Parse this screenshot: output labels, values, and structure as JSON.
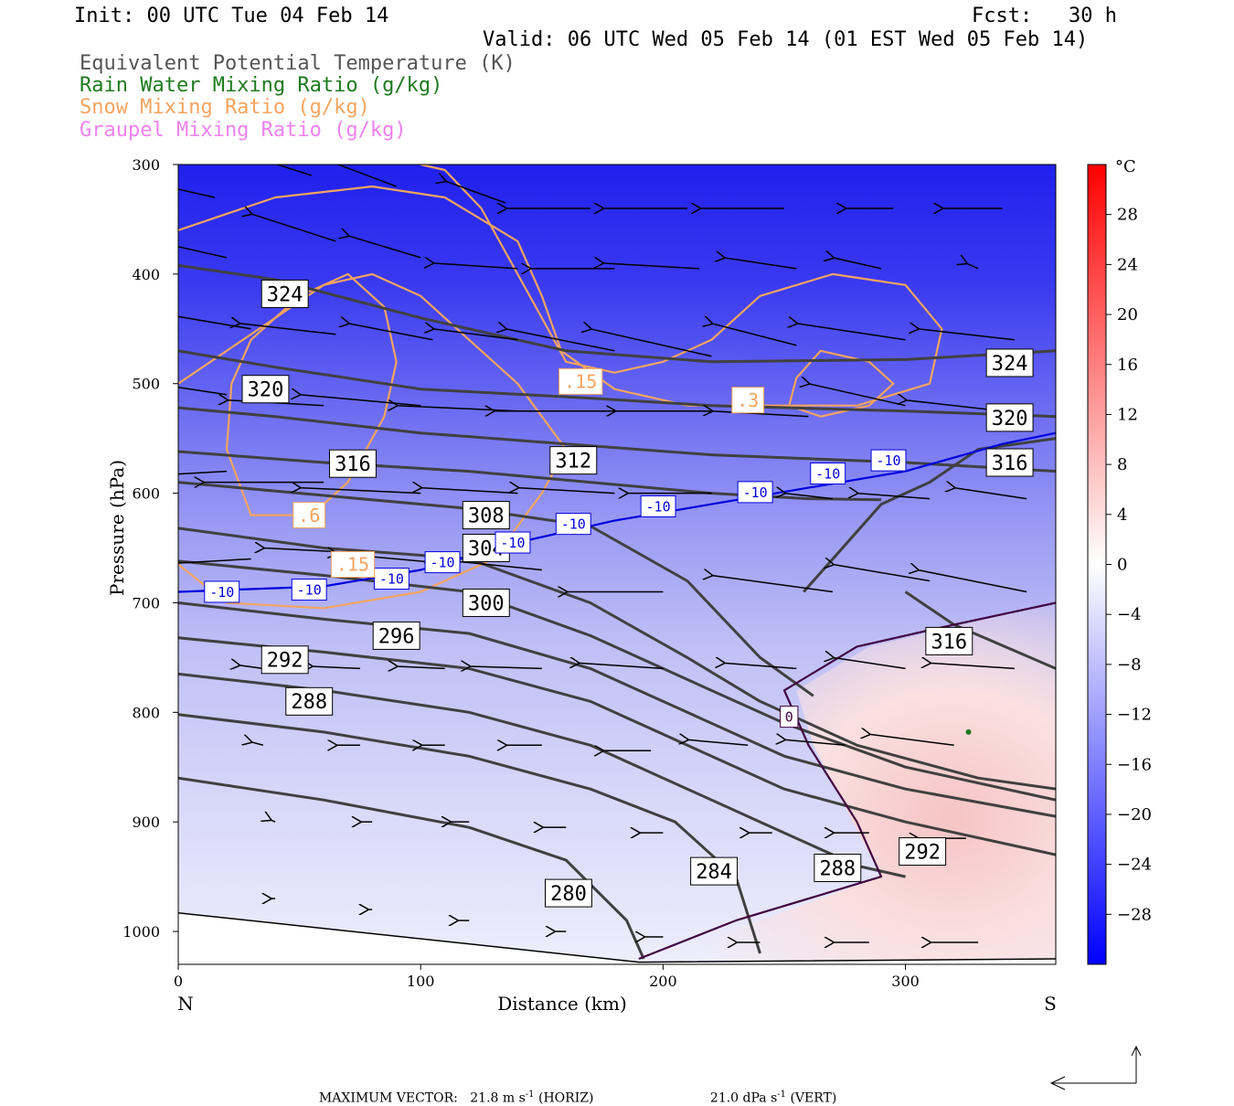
{
  "header": {
    "init": "Init: 00 UTC Tue 04 Feb 14",
    "fcst": "Fcst:   30 h",
    "valid": "Valid: 06 UTC Wed 05 Feb 14 (01 EST Wed 05 Feb 14)"
  },
  "fields": [
    {
      "label": "Equivalent Potential Temperature (K)",
      "color": "#555555"
    },
    {
      "label": "Rain Water Mixing Ratio (g/kg)",
      "color": "#1f7a1f"
    },
    {
      "label": "Snow Mixing Ratio (g/kg)",
      "color": "#f4a460"
    },
    {
      "label": "Graupel Mixing Ratio (g/kg)",
      "color": "#ee82ee"
    }
  ],
  "chart_data": {
    "type": "cross-section",
    "xlabel": "Distance (km)",
    "ylabel": "Pressure (hPa)",
    "x_ticks": [
      "0",
      "100",
      "200",
      "300"
    ],
    "x_tick_values": [
      0,
      100,
      200,
      300
    ],
    "xlim": [
      0,
      362
    ],
    "y_ticks": [
      "300",
      "400",
      "500",
      "600",
      "700",
      "800",
      "900",
      "1000"
    ],
    "y_tick_values": [
      300,
      400,
      500,
      600,
      700,
      800,
      900,
      1000
    ],
    "ylim": [
      300,
      1030
    ],
    "y_scale": "linear-inverted",
    "left_end": "N",
    "right_end": "S",
    "colorbar": {
      "unit": "°C",
      "tick_labels": [
        "28",
        "24",
        "20",
        "16",
        "12",
        "8",
        "4",
        "0",
        "-4",
        "-8",
        "-12",
        "-16",
        "-20",
        "-24",
        "-28"
      ],
      "range": [
        -32,
        32
      ],
      "low_color": "#0000ff",
      "mid_color": "#ffffff",
      "high_color": "#ff0000"
    },
    "theta_e_contours": [
      {
        "label": "324",
        "points": [
          [
            0,
            392
          ],
          [
            40,
            405
          ],
          [
            100,
            440
          ],
          [
            160,
            470
          ],
          [
            220,
            480
          ],
          [
            300,
            478
          ],
          [
            362,
            470
          ]
        ]
      },
      {
        "label": "320",
        "points": [
          [
            0,
            470
          ],
          [
            40,
            485
          ],
          [
            100,
            505
          ],
          [
            160,
            512
          ],
          [
            220,
            520
          ],
          [
            300,
            525
          ],
          [
            362,
            530
          ]
        ]
      },
      {
        "label": "316",
        "points": [
          [
            0,
            522
          ],
          [
            40,
            530
          ],
          [
            100,
            545
          ],
          [
            160,
            555
          ],
          [
            220,
            565
          ],
          [
            300,
            572
          ],
          [
            362,
            580
          ]
        ]
      },
      {
        "label": "312",
        "points": [
          [
            0,
            562
          ],
          [
            60,
            572
          ],
          [
            120,
            580
          ],
          [
            170,
            590
          ],
          [
            220,
            600
          ],
          [
            260,
            605
          ],
          [
            290,
            606
          ]
        ]
      },
      {
        "label": "308",
        "points": [
          [
            0,
            590
          ],
          [
            60,
            602
          ],
          [
            120,
            614
          ],
          [
            170,
            630
          ],
          [
            210,
            680
          ],
          [
            240,
            750
          ],
          [
            262,
            785
          ]
        ]
      },
      {
        "label": "304",
        "points": [
          [
            0,
            632
          ],
          [
            60,
            650
          ],
          [
            120,
            660
          ],
          [
            170,
            700
          ],
          [
            210,
            750
          ],
          [
            240,
            790
          ],
          [
            280,
            830
          ],
          [
            330,
            860
          ],
          [
            362,
            870
          ]
        ]
      },
      {
        "label": "300",
        "points": [
          [
            0,
            662
          ],
          [
            60,
            675
          ],
          [
            120,
            690
          ],
          [
            170,
            730
          ],
          [
            210,
            770
          ],
          [
            250,
            810
          ],
          [
            300,
            850
          ],
          [
            362,
            880
          ]
        ]
      },
      {
        "label": "296",
        "points": [
          [
            0,
            700
          ],
          [
            60,
            715
          ],
          [
            120,
            728
          ],
          [
            170,
            760
          ],
          [
            210,
            800
          ],
          [
            250,
            840
          ],
          [
            300,
            870
          ],
          [
            362,
            895
          ]
        ]
      },
      {
        "label": "292",
        "points": [
          [
            0,
            732
          ],
          [
            60,
            745
          ],
          [
            120,
            760
          ],
          [
            170,
            790
          ],
          [
            210,
            830
          ],
          [
            250,
            870
          ],
          [
            300,
            900
          ],
          [
            362,
            930
          ]
        ]
      },
      {
        "label": "288",
        "points": [
          [
            0,
            765
          ],
          [
            60,
            780
          ],
          [
            120,
            800
          ],
          [
            170,
            830
          ],
          [
            200,
            860
          ],
          [
            240,
            900
          ],
          [
            280,
            940
          ],
          [
            300,
            950
          ]
        ]
      },
      {
        "label": "284",
        "points": [
          [
            0,
            802
          ],
          [
            60,
            818
          ],
          [
            120,
            840
          ],
          [
            170,
            870
          ],
          [
            205,
            900
          ],
          [
            230,
            950
          ],
          [
            240,
            1020
          ]
        ]
      },
      {
        "label": "280",
        "points": [
          [
            0,
            860
          ],
          [
            60,
            880
          ],
          [
            120,
            905
          ],
          [
            160,
            935
          ],
          [
            185,
            990
          ],
          [
            192,
            1025
          ]
        ]
      }
    ],
    "theta_e_right_branch": [
      [
        258,
        690
      ],
      [
        290,
        610
      ],
      [
        300,
        600
      ],
      [
        310,
        590
      ],
      [
        330,
        560
      ],
      [
        362,
        550
      ]
    ],
    "theta_e_right_lower": [
      [
        300,
        690
      ],
      [
        320,
        720
      ],
      [
        362,
        760
      ]
    ],
    "theta_e_label_316_right": "316",
    "isotherm_minus10": {
      "label": "-10",
      "points": [
        [
          0,
          690
        ],
        [
          60,
          685
        ],
        [
          100,
          670
        ],
        [
          140,
          645
        ],
        [
          180,
          625
        ],
        [
          220,
          610
        ],
        [
          260,
          595
        ],
        [
          300,
          580
        ],
        [
          340,
          555
        ],
        [
          362,
          545
        ]
      ]
    },
    "isotherm_zero": {
      "label": "0",
      "points": [
        [
          190,
          1025
        ],
        [
          230,
          990
        ],
        [
          290,
          950
        ],
        [
          280,
          900
        ],
        [
          260,
          830
        ],
        [
          250,
          780
        ],
        [
          280,
          740
        ],
        [
          320,
          720
        ],
        [
          362,
          700
        ]
      ]
    },
    "snow_contours": [
      {
        "label": ".15",
        "closed": false,
        "points": [
          [
            0,
            360
          ],
          [
            40,
            330
          ],
          [
            80,
            320
          ],
          [
            110,
            330
          ],
          [
            140,
            370
          ],
          [
            150,
            420
          ],
          [
            158,
            470
          ],
          [
            180,
            505
          ],
          [
            210,
            520
          ],
          [
            280,
            520
          ],
          [
            310,
            500
          ],
          [
            315,
            450
          ],
          [
            300,
            410
          ],
          [
            270,
            400
          ],
          [
            240,
            420
          ],
          [
            220,
            460
          ],
          [
            200,
            480
          ],
          [
            180,
            490
          ],
          [
            160,
            480
          ],
          [
            140,
            400
          ],
          [
            125,
            340
          ],
          [
            110,
            305
          ],
          [
            100,
            300
          ]
        ]
      },
      {
        "label": ".6",
        "closed": true,
        "points": [
          [
            30,
            620
          ],
          [
            20,
            560
          ],
          [
            22,
            500
          ],
          [
            30,
            460
          ],
          [
            50,
            420
          ],
          [
            70,
            400
          ],
          [
            85,
            430
          ],
          [
            90,
            480
          ],
          [
            85,
            530
          ],
          [
            70,
            590
          ],
          [
            55,
            620
          ]
        ]
      },
      {
        "label": ".15",
        "closed": false,
        "points": [
          [
            0,
            665
          ],
          [
            20,
            700
          ],
          [
            60,
            705
          ],
          [
            100,
            690
          ],
          [
            130,
            660
          ],
          [
            150,
            600
          ],
          [
            160,
            560
          ],
          [
            140,
            500
          ],
          [
            120,
            460
          ],
          [
            100,
            420
          ],
          [
            80,
            400
          ],
          [
            60,
            410
          ],
          [
            40,
            440
          ],
          [
            20,
            470
          ],
          [
            0,
            500
          ]
        ]
      },
      {
        "label": ".3",
        "closed": true,
        "points": [
          [
            252,
            520
          ],
          [
            255,
            495
          ],
          [
            265,
            470
          ],
          [
            285,
            480
          ],
          [
            295,
            500
          ],
          [
            285,
            520
          ],
          [
            265,
            530
          ]
        ]
      }
    ],
    "vector_scale_note": "MAXIMUM VECTOR",
    "max_horiz": "21.8 m s",
    "max_horiz_unit_end": "(HORIZ)",
    "max_vert": "21.0 dPa s",
    "max_vert_unit_end": "(VERT)",
    "exponent": "-1"
  },
  "colors": {
    "theta_e": "#404040",
    "isotherm_minus10": "#0000dd",
    "isotherm_zero": "#400040",
    "snow": "#f4a460",
    "vector": "#000000"
  }
}
